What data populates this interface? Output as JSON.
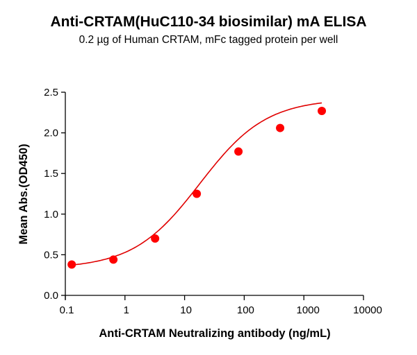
{
  "chart_data": {
    "type": "scatter",
    "title": "Anti-CRTAM(HuC110-34 biosimilar) mA ELISA",
    "subtitle": "0.2 µg of Human CRTAM, mFc tagged protein per well",
    "xlabel": "Anti-CRTAM Neutralizing antibody (ng/mL)",
    "ylabel": "Mean Abs.(OD450)",
    "xscale": "log",
    "xlim": [
      0.1,
      10000
    ],
    "ylim": [
      0.0,
      2.5
    ],
    "xticks": [
      "0.1",
      "1",
      "10",
      "100",
      "1000",
      "10000"
    ],
    "yticks": [
      "0.0",
      "0.5",
      "1.0",
      "1.5",
      "2.0",
      "2.5"
    ],
    "grid": false,
    "fit": "4-parameter logistic curve",
    "series": [
      {
        "name": "Anti-CRTAM Neutralizing antibody",
        "color": "#ff0000",
        "x": [
          0.128,
          0.64,
          3.2,
          16,
          80,
          400,
          2000
        ],
        "y": [
          0.38,
          0.44,
          0.7,
          1.25,
          1.77,
          2.06,
          2.27
        ]
      }
    ]
  }
}
